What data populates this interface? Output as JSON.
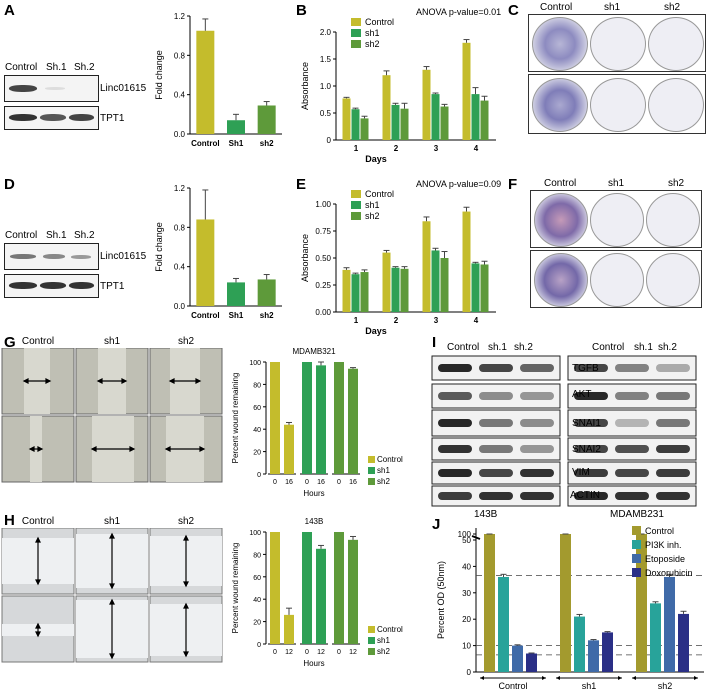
{
  "panel_labels": {
    "A": "A",
    "B": "B",
    "C": "C",
    "D": "D",
    "E": "E",
    "F": "F",
    "G": "G",
    "H": "H",
    "I": "I",
    "J": "J"
  },
  "blot_A": {
    "lanes": [
      "Control",
      "Sh.1",
      "Sh.2"
    ],
    "rows": [
      "Linc01615",
      "TPT1"
    ]
  },
  "blot_D": {
    "lanes": [
      "Control",
      "Sh.1",
      "Sh.2"
    ],
    "rows": [
      "Linc01615",
      "TPT1"
    ]
  },
  "colony_C": {
    "lanes": [
      "Control",
      "sh1",
      "sh2"
    ]
  },
  "colony_F": {
    "lanes": [
      "Control",
      "sh1",
      "sh2"
    ]
  },
  "wound_G": {
    "lanes": [
      "Control",
      "sh1",
      "sh2"
    ]
  },
  "wound_H": {
    "lanes": [
      "Control",
      "sh1",
      "sh2"
    ]
  },
  "blot_I": {
    "left": {
      "lanes": [
        "Control",
        "sh.1",
        "sh.2"
      ],
      "cell_line": "143B"
    },
    "right": {
      "lanes": [
        "Control",
        "sh.1",
        "sh.2"
      ],
      "cell_line": "MDAMB231"
    },
    "rows": [
      "TGFB",
      "AKT",
      "SNAI1",
      "SNAI2",
      "VIM",
      "ACTIN"
    ]
  },
  "colors": {
    "control": "#c4bc2c",
    "sh1": "#2ea055",
    "sh2": "#5e9a3a",
    "olive": "#a39a2e",
    "teal": "#28a39a",
    "blue": "#3f6aa8",
    "navy": "#2a2f86"
  },
  "chart_data": [
    {
      "id": "A",
      "type": "bar",
      "categories": [
        "Control",
        "Sh1",
        "sh2"
      ],
      "values": [
        1.05,
        0.14,
        0.29
      ],
      "errors": [
        0.12,
        0.06,
        0.04
      ],
      "ylabel": "Fold change",
      "ylim": [
        0,
        1.2
      ],
      "yticks": [
        "0.0",
        "0.4",
        "0.8",
        "1.2"
      ],
      "colors": [
        "#c4bc2c",
        "#2ea055",
        "#5e9a3a"
      ]
    },
    {
      "id": "B",
      "type": "bar",
      "title": "ANOVA p-value=0.01",
      "xlabel": "Days",
      "ylabel": "Absorbance",
      "categories": [
        "1",
        "2",
        "3",
        "4"
      ],
      "ylim": [
        0,
        2.0
      ],
      "yticks": [
        "0",
        "0.5",
        "1.0",
        "1.5",
        "2.0"
      ],
      "series": [
        {
          "name": "Control",
          "values": [
            0.77,
            1.2,
            1.3,
            1.8
          ],
          "errors": [
            0.02,
            0.08,
            0.06,
            0.06
          ]
        },
        {
          "name": "sh1",
          "values": [
            0.57,
            0.65,
            0.85,
            0.85
          ],
          "errors": [
            0.02,
            0.03,
            0.02,
            0.12
          ]
        },
        {
          "name": "sh2",
          "values": [
            0.4,
            0.58,
            0.62,
            0.73
          ],
          "errors": [
            0.04,
            0.1,
            0.04,
            0.08
          ]
        }
      ]
    },
    {
      "id": "D",
      "type": "bar",
      "categories": [
        "Control",
        "Sh1",
        "sh2"
      ],
      "values": [
        0.88,
        0.24,
        0.27
      ],
      "errors": [
        0.3,
        0.04,
        0.05
      ],
      "ylabel": "Fold change",
      "ylim": [
        0,
        1.2
      ],
      "yticks": [
        "0.0",
        "0.4",
        "0.8",
        "1.2"
      ],
      "colors": [
        "#c4bc2c",
        "#2ea055",
        "#5e9a3a"
      ]
    },
    {
      "id": "E",
      "type": "bar",
      "title": "ANOVA p-value=0.09",
      "xlabel": "Days",
      "ylabel": "Absorbance",
      "categories": [
        "1",
        "2",
        "3",
        "4"
      ],
      "ylim": [
        0,
        1.0
      ],
      "yticks": [
        "0.00",
        "0.25",
        "0.50",
        "0.75",
        "1.00"
      ],
      "series": [
        {
          "name": "Control",
          "values": [
            0.39,
            0.55,
            0.84,
            0.93
          ],
          "errors": [
            0.02,
            0.02,
            0.04,
            0.04
          ]
        },
        {
          "name": "sh1",
          "values": [
            0.35,
            0.41,
            0.57,
            0.45
          ],
          "errors": [
            0.01,
            0.01,
            0.02,
            0.01
          ]
        },
        {
          "name": "sh2",
          "values": [
            0.37,
            0.4,
            0.5,
            0.44
          ],
          "errors": [
            0.02,
            0.02,
            0.06,
            0.03
          ]
        }
      ]
    },
    {
      "id": "G",
      "type": "bar",
      "title": "MDAMB321",
      "xlabel": "Hours",
      "ylabel": "Percent wound remaining",
      "ylim": [
        0,
        100
      ],
      "yticks": [
        "0",
        "20",
        "40",
        "60",
        "80",
        "100"
      ],
      "groups": [
        {
          "name": "Control",
          "x": [
            "0",
            "16"
          ],
          "values": [
            100,
            44
          ],
          "errors": [
            0,
            2
          ]
        },
        {
          "name": "sh1",
          "x": [
            "0",
            "16"
          ],
          "values": [
            100,
            97
          ],
          "errors": [
            0,
            3
          ]
        },
        {
          "name": "sh2",
          "x": [
            "0",
            "16"
          ],
          "values": [
            100,
            94
          ],
          "errors": [
            0,
            1
          ]
        }
      ]
    },
    {
      "id": "H",
      "type": "bar",
      "title": "143B",
      "xlabel": "Hours",
      "ylabel": "Percent wound remaining",
      "ylim": [
        0,
        100
      ],
      "yticks": [
        "0",
        "20",
        "40",
        "60",
        "80",
        "100"
      ],
      "groups": [
        {
          "name": "Control",
          "x": [
            "0",
            "12"
          ],
          "values": [
            100,
            26
          ],
          "errors": [
            0,
            6
          ]
        },
        {
          "name": "sh1",
          "x": [
            "0",
            "12"
          ],
          "values": [
            100,
            85
          ],
          "errors": [
            0,
            3
          ]
        },
        {
          "name": "sh2",
          "x": [
            "0",
            "12"
          ],
          "values": [
            100,
            93
          ],
          "errors": [
            0,
            3
          ]
        }
      ]
    },
    {
      "id": "J",
      "type": "bar",
      "ylabel": "Percent OD (50nm)",
      "yticks": [
        "0",
        "10",
        "20",
        "30",
        "40",
        "50",
        "100"
      ],
      "groups": [
        "Control",
        "sh1",
        "sh2"
      ],
      "series": [
        {
          "name": "Control",
          "values": [
            100,
            100,
            100
          ]
        },
        {
          "name": "PI3K inh.",
          "values": [
            36,
            21,
            26
          ]
        },
        {
          "name": "Etoposide",
          "values": [
            10,
            12,
            36
          ]
        },
        {
          "name": "Doxorubicin",
          "values": [
            7,
            15,
            22
          ]
        }
      ],
      "errors": [
        [
          1,
          1,
          1
        ],
        [
          1,
          0.8,
          0.6
        ],
        [
          0.3,
          0.3,
          1
        ],
        [
          0.2,
          0.3,
          1
        ]
      ]
    }
  ]
}
